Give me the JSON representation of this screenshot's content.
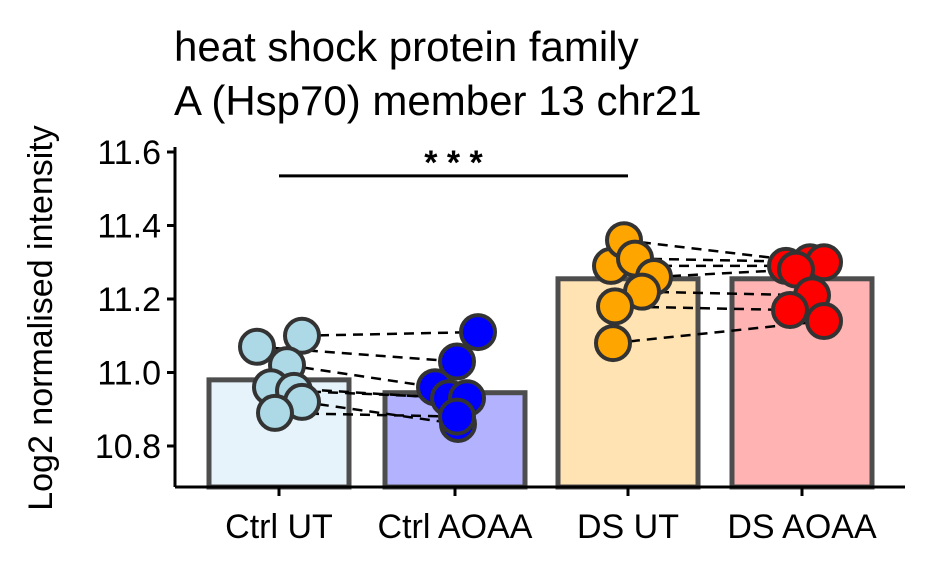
{
  "chart_data": {
    "type": "bar",
    "title_lines": [
      "heat shock protein family",
      "A (Hsp70) member 13 chr21"
    ],
    "xlabel": "",
    "ylabel": "Log2 normalised intensity",
    "ylim": [
      10.69,
      11.62
    ],
    "yticks": [
      10.8,
      11.0,
      11.2,
      11.4,
      11.6
    ],
    "ytick_labels": [
      "10.8",
      "11.0",
      "11.2",
      "11.4",
      "11.6"
    ],
    "categories": [
      "Ctrl UT",
      "Ctrl AOAA",
      "DS UT",
      "DS AOAA"
    ],
    "values": [
      10.98,
      10.945,
      11.255,
      11.255
    ],
    "bar_colors": [
      "#e6f3fa",
      "#b2b2ff",
      "#ffe3b3",
      "#ffb3b3"
    ],
    "point_colors": [
      "#add8e6",
      "#0000ff",
      "#ffa500",
      "#ff0000"
    ],
    "points": [
      [
        11.07,
        11.1,
        11.02,
        10.96,
        10.95,
        10.92,
        10.89
      ],
      [
        11.03,
        11.11,
        10.96,
        10.93,
        10.93,
        10.86,
        10.88
      ],
      [
        11.29,
        11.36,
        11.31,
        11.26,
        11.22,
        11.18,
        11.08
      ],
      [
        11.29,
        11.3,
        11.3,
        11.28,
        11.21,
        11.17,
        11.14
      ]
    ],
    "pairs": [
      [
        [
          11.07,
          11.03
        ],
        [
          11.1,
          11.11
        ],
        [
          11.02,
          10.96
        ],
        [
          10.96,
          10.93
        ],
        [
          10.95,
          10.93
        ],
        [
          10.92,
          10.86
        ],
        [
          10.89,
          10.88
        ]
      ],
      [
        [
          11.29,
          11.29
        ],
        [
          11.36,
          11.3
        ],
        [
          11.31,
          11.3
        ],
        [
          11.26,
          11.28
        ],
        [
          11.22,
          11.21
        ],
        [
          11.18,
          11.17
        ],
        [
          11.08,
          11.14
        ]
      ]
    ],
    "significance": {
      "label": "* * *",
      "from": "Ctrl UT",
      "to": "DS UT",
      "y": 11.535
    }
  }
}
